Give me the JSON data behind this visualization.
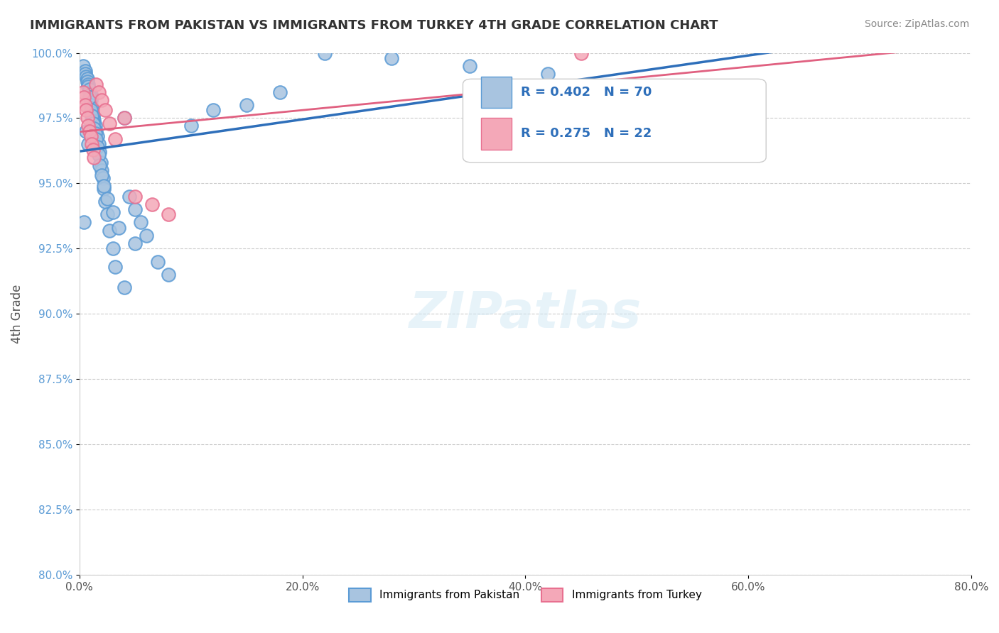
{
  "title": "IMMIGRANTS FROM PAKISTAN VS IMMIGRANTS FROM TURKEY 4TH GRADE CORRELATION CHART",
  "source": "Source: ZipAtlas.com",
  "xlabel": "",
  "ylabel": "4th Grade",
  "xlim": [
    0.0,
    80.0
  ],
  "ylim": [
    80.0,
    100.0
  ],
  "xticks": [
    0.0,
    20.0,
    40.0,
    60.0,
    80.0
  ],
  "yticks": [
    80.0,
    82.5,
    85.0,
    87.5,
    90.0,
    92.5,
    95.0,
    97.5,
    100.0
  ],
  "xtick_labels": [
    "0.0%",
    "20.0%",
    "40.0%",
    "60.0%",
    "80.0%"
  ],
  "ytick_labels": [
    "80.0%",
    "82.5%",
    "85.0%",
    "87.5%",
    "90.0%",
    "92.5%",
    "95.0%",
    "97.5%",
    "100.0%"
  ],
  "pakistan_color": "#a8c4e0",
  "turkey_color": "#f4a8b8",
  "pakistan_edge_color": "#5b9bd5",
  "turkey_edge_color": "#e87090",
  "trend_pakistan_color": "#2e6fba",
  "trend_turkey_color": "#e06080",
  "R_pakistan": 0.402,
  "N_pakistan": 70,
  "R_turkey": 0.275,
  "N_turkey": 22,
  "legend_label_pakistan": "Immigrants from Pakistan",
  "legend_label_turkey": "Immigrants from Turkey",
  "watermark": "ZIPatlas",
  "pakistan_x": [
    0.3,
    0.5,
    0.5,
    0.6,
    0.7,
    0.7,
    0.8,
    0.8,
    0.9,
    0.9,
    1.0,
    1.0,
    1.0,
    1.0,
    1.1,
    1.1,
    1.1,
    1.2,
    1.2,
    1.3,
    1.3,
    1.4,
    1.5,
    1.6,
    1.7,
    1.8,
    1.9,
    2.0,
    2.1,
    2.2,
    2.3,
    2.5,
    2.7,
    3.0,
    3.2,
    4.0,
    4.5,
    5.0,
    5.5,
    6.0,
    7.0,
    8.0,
    10.0,
    12.0,
    15.0,
    18.0,
    22.0,
    28.0,
    35.0,
    42.0,
    0.4,
    0.6,
    0.8,
    0.9,
    1.0,
    1.1,
    1.2,
    1.3,
    1.4,
    1.5,
    1.6,
    1.7,
    1.8,
    2.0,
    2.2,
    2.5,
    3.0,
    3.5,
    4.0,
    5.0
  ],
  "pakistan_y": [
    99.5,
    99.3,
    99.2,
    99.1,
    99.0,
    98.9,
    98.8,
    98.7,
    98.5,
    98.6,
    98.4,
    98.3,
    98.2,
    98.0,
    97.8,
    97.9,
    97.7,
    97.5,
    97.6,
    97.4,
    97.3,
    97.2,
    97.0,
    96.8,
    96.5,
    96.2,
    95.8,
    95.5,
    95.2,
    94.8,
    94.3,
    93.8,
    93.2,
    92.5,
    91.8,
    91.0,
    94.5,
    94.0,
    93.5,
    93.0,
    92.0,
    91.5,
    97.2,
    97.8,
    98.0,
    98.5,
    100.0,
    99.8,
    99.5,
    99.2,
    93.5,
    97.0,
    96.5,
    98.3,
    97.8,
    97.6,
    97.3,
    97.1,
    96.9,
    96.7,
    96.4,
    96.1,
    95.7,
    95.3,
    94.9,
    94.4,
    93.9,
    93.3,
    97.5,
    92.7
  ],
  "turkey_x": [
    0.3,
    0.4,
    0.5,
    0.6,
    0.7,
    0.8,
    0.9,
    1.0,
    1.1,
    1.2,
    1.3,
    1.5,
    1.7,
    2.0,
    2.3,
    2.7,
    3.2,
    4.0,
    5.0,
    6.5,
    8.0,
    45.0
  ],
  "turkey_y": [
    98.5,
    98.3,
    98.0,
    97.8,
    97.5,
    97.2,
    97.0,
    96.8,
    96.5,
    96.3,
    96.0,
    98.8,
    98.5,
    98.2,
    97.8,
    97.3,
    96.7,
    97.5,
    94.5,
    94.2,
    93.8,
    100.0
  ]
}
